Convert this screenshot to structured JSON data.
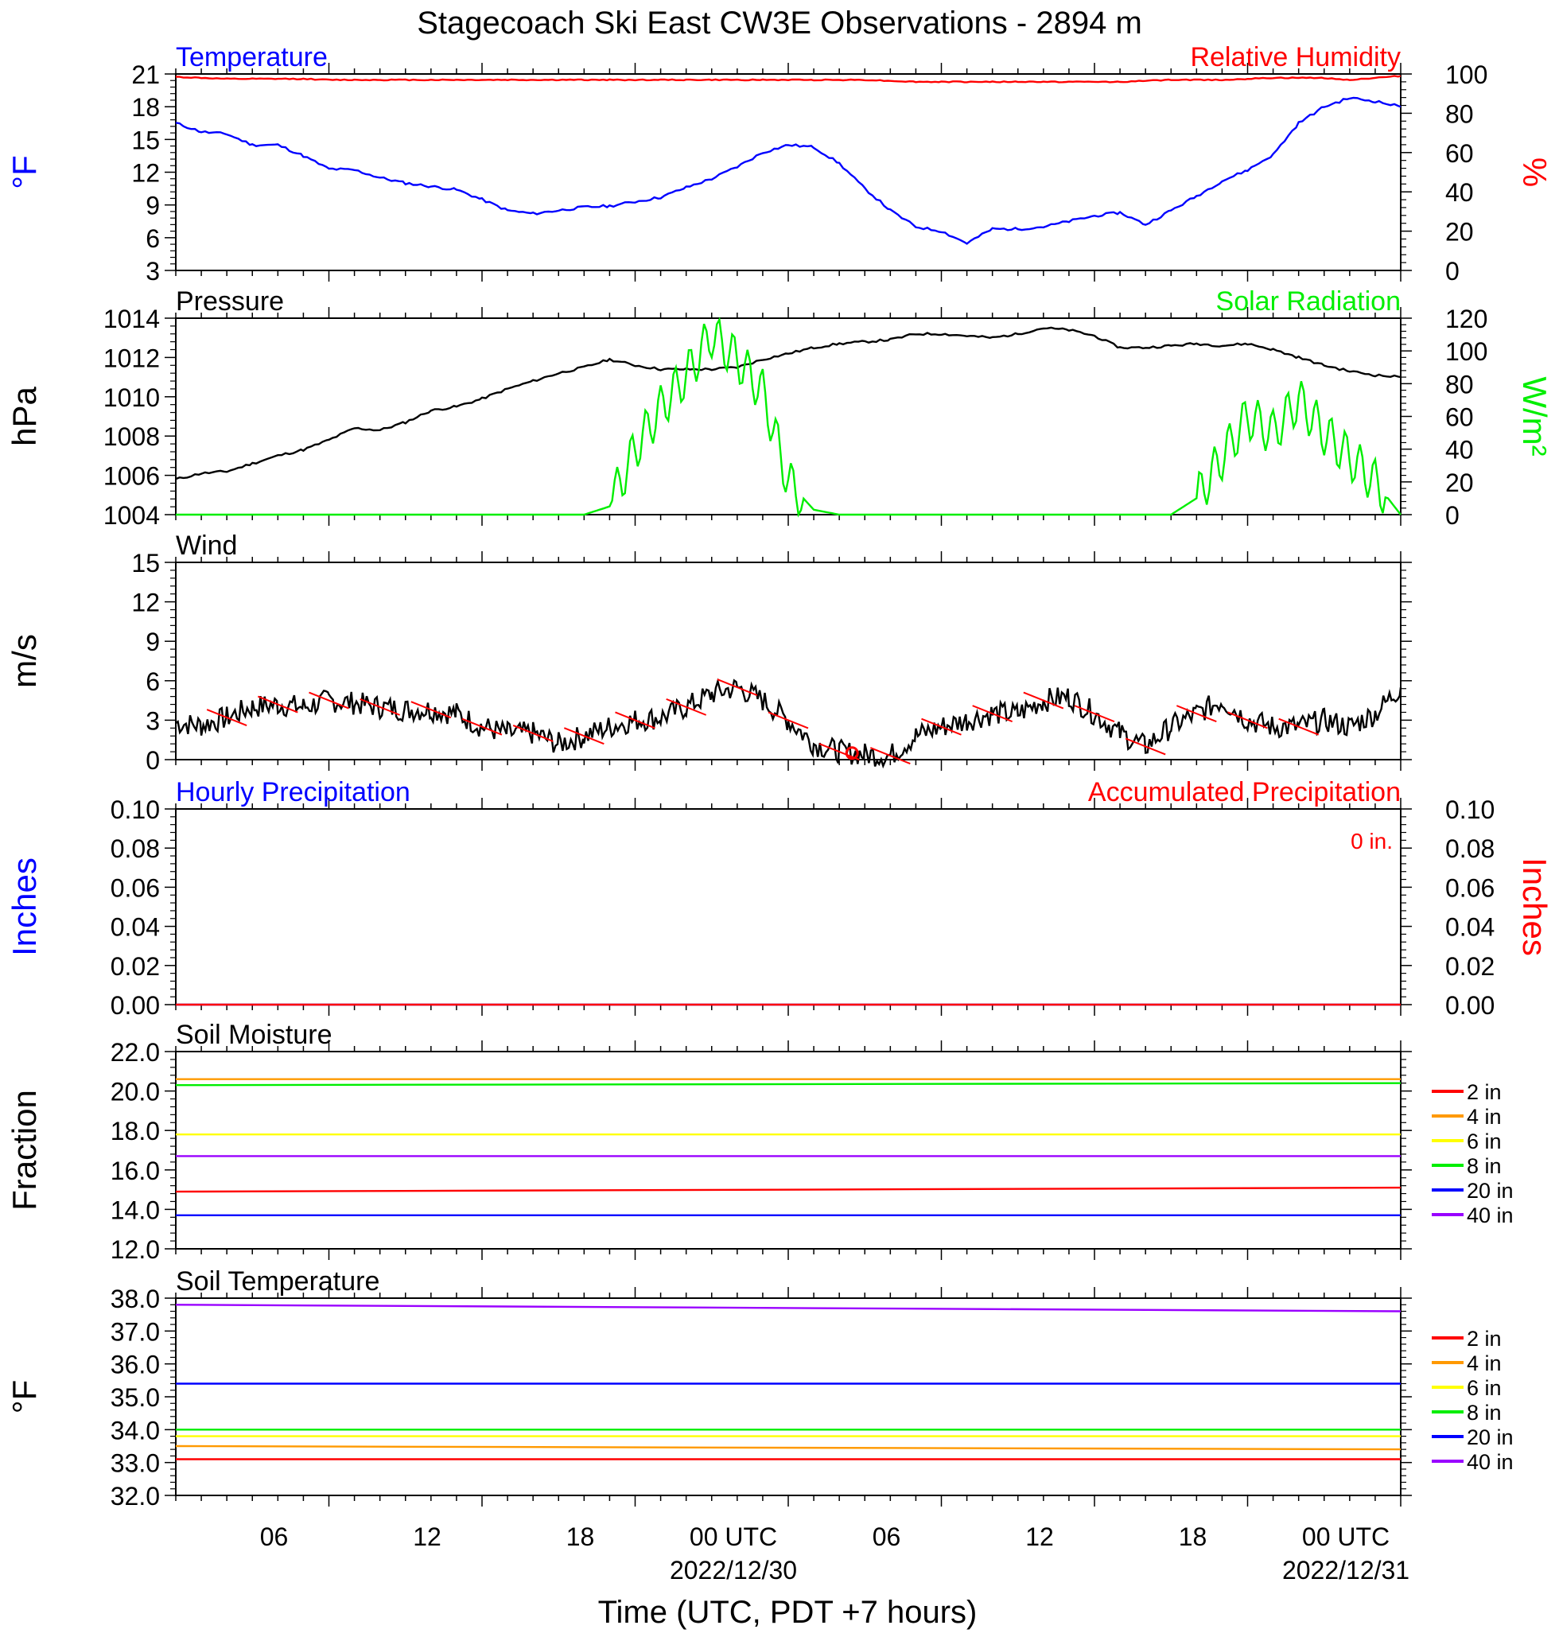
{
  "page": {
    "title": "Stagecoach Ski East CW3E Observations - 2894 m",
    "xlabel": "Time (UTC, PDT +7 hours)",
    "x_ticks": [
      {
        "label": "06"
      },
      {
        "label": "12"
      },
      {
        "label": "18"
      },
      {
        "label": "00 UTC",
        "date": "2022/12/30"
      },
      {
        "label": "06"
      },
      {
        "label": "12"
      },
      {
        "label": "18"
      },
      {
        "label": "00 UTC",
        "date": "2022/12/31"
      }
    ],
    "colors": {
      "blue": "#0000ff",
      "red": "#ff0000",
      "green": "#00ee00",
      "black": "#000000",
      "orange": "#ff9900",
      "yellow": "#ffff00",
      "purple": "#9900ff"
    }
  },
  "chart_data": [
    {
      "id": "temperature",
      "type": "line",
      "title_left": "Temperature",
      "title_right": "Relative Humidity",
      "ylabel_left": "°F",
      "ylabel_right": "%",
      "ylim_left": [
        3,
        21
      ],
      "yticks_left": [
        "21",
        "18",
        "15",
        "12",
        "9",
        "6",
        "3"
      ],
      "ylim_right": [
        0,
        100
      ],
      "yticks_right": [
        "100",
        "80",
        "60",
        "40",
        "20",
        "0"
      ],
      "x_hours": [
        0,
        1,
        2,
        3,
        4,
        5,
        6,
        7,
        8,
        9,
        10,
        11,
        12,
        13,
        14,
        15,
        16,
        17,
        18,
        19,
        20,
        21,
        22,
        23,
        24,
        25,
        26,
        27,
        28,
        29,
        30,
        31,
        32,
        33,
        34,
        35,
        36,
        37,
        38,
        39,
        40,
        41,
        42,
        43,
        44,
        45,
        46,
        47,
        48
      ],
      "series": [
        {
          "name": "Temperature",
          "axis": "left",
          "color": "blue",
          "values": [
            16.5,
            15.7,
            15.5,
            14.5,
            14.5,
            13.5,
            12.3,
            12.2,
            11.5,
            11.0,
            10.7,
            10.4,
            9.5,
            8.5,
            8.2,
            8.5,
            8.8,
            8.9,
            9.3,
            9.7,
            10.6,
            11.4,
            12.5,
            13.8,
            14.5,
            14.3,
            12.8,
            10.5,
            8.5,
            7.0,
            6.6,
            5.5,
            6.8,
            6.8,
            7.0,
            7.5,
            8.0,
            8.3,
            7.2,
            8.5,
            9.8,
            11.2,
            12.2,
            13.6,
            16.5,
            18.0,
            18.8,
            18.5,
            18.0
          ]
        },
        {
          "name": "Relative Humidity",
          "axis": "right",
          "color": "red",
          "values": [
            98.5,
            98,
            97.5,
            97.5,
            97.5,
            97.5,
            97,
            97,
            97,
            97,
            97,
            97,
            97,
            97,
            97,
            97,
            97,
            97,
            97,
            97,
            97,
            97,
            97,
            97,
            97,
            97,
            97,
            97,
            96.5,
            96,
            96,
            96,
            96,
            96,
            96,
            96,
            96,
            96,
            96.5,
            97,
            97,
            97,
            97.5,
            98,
            98,
            98,
            97,
            98,
            99
          ]
        }
      ]
    },
    {
      "id": "pressure",
      "type": "line",
      "title_left": "Pressure",
      "title_right": "Solar Radiation",
      "ylabel_left": "hPa",
      "ylabel_right": "W/m²",
      "ylim_left": [
        1004,
        1014
      ],
      "yticks_left": [
        "1014",
        "1012",
        "1010",
        "1008",
        "1006",
        "1004"
      ],
      "ylim_right": [
        0,
        120
      ],
      "yticks_right": [
        "120",
        "100",
        "80",
        "60",
        "40",
        "20",
        "0"
      ],
      "x_hours": [
        0,
        1,
        2,
        3,
        4,
        5,
        6,
        7,
        8,
        9,
        10,
        11,
        12,
        13,
        14,
        15,
        16,
        17,
        18,
        19,
        20,
        21,
        22,
        23,
        24,
        25,
        26,
        27,
        28,
        29,
        30,
        31,
        32,
        33,
        34,
        35,
        36,
        37,
        38,
        39,
        40,
        41,
        42,
        43,
        44,
        45,
        46,
        47,
        48
      ],
      "series": [
        {
          "name": "Pressure",
          "axis": "left",
          "color": "black",
          "values": [
            1005.8,
            1006.1,
            1006.2,
            1006.6,
            1007.0,
            1007.3,
            1007.8,
            1008.4,
            1008.3,
            1008.7,
            1009.3,
            1009.5,
            1009.9,
            1010.4,
            1010.8,
            1011.2,
            1011.5,
            1011.9,
            1011.6,
            1011.4,
            1011.4,
            1011.4,
            1011.5,
            1011.9,
            1012.2,
            1012.5,
            1012.7,
            1012.8,
            1012.9,
            1013.2,
            1013.2,
            1013.1,
            1013.0,
            1013.2,
            1013.5,
            1013.4,
            1013.1,
            1012.5,
            1012.5,
            1012.6,
            1012.7,
            1012.6,
            1012.7,
            1012.4,
            1012.0,
            1011.6,
            1011.3,
            1011.1,
            1011.0
          ]
        },
        {
          "name": "Solar Radiation",
          "axis": "right",
          "color": "green",
          "values": [
            0,
            0,
            0,
            0,
            0,
            0,
            0,
            0,
            0,
            0,
            0,
            0,
            0,
            0,
            0,
            0,
            0,
            5,
            40,
            65,
            85,
            110,
            95,
            75,
            20,
            3,
            0,
            0,
            0,
            0,
            0,
            0,
            0,
            0,
            0,
            0,
            0,
            0,
            0,
            0,
            10,
            35,
            60,
            50,
            70,
            50,
            35,
            20,
            0
          ]
        }
      ]
    },
    {
      "id": "wind",
      "type": "line",
      "title_left": "Wind",
      "ylabel_left": "m/s",
      "ylim_left": [
        0,
        15
      ],
      "yticks_left": [
        "15",
        "12",
        "9",
        "6",
        "3",
        "0"
      ],
      "x_hours": [
        0,
        1,
        2,
        3,
        4,
        5,
        6,
        7,
        8,
        9,
        10,
        11,
        12,
        13,
        14,
        15,
        16,
        17,
        18,
        19,
        20,
        21,
        22,
        23,
        24,
        25,
        26,
        27,
        28,
        29,
        30,
        31,
        32,
        33,
        34,
        35,
        36,
        37,
        38,
        39,
        40,
        41,
        42,
        43,
        44,
        45,
        46,
        47,
        48
      ],
      "series": [
        {
          "name": "Wind speed",
          "axis": "left",
          "color": "black",
          "values": [
            2.8,
            2.6,
            3.2,
            4.0,
            4.2,
            4.0,
            4.5,
            4.3,
            4.0,
            3.8,
            3.8,
            3.5,
            2.5,
            2.0,
            2.0,
            1.2,
            1.8,
            2.5,
            3.0,
            3.2,
            4.0,
            5.0,
            5.5,
            4.5,
            3.0,
            1.2,
            0.6,
            0.4,
            0.3,
            1.8,
            2.5,
            3.0,
            3.5,
            3.5,
            4.5,
            4.8,
            3.5,
            2.0,
            1.0,
            2.5,
            3.5,
            4.5,
            3.0,
            2.5,
            2.5,
            3.0,
            2.5,
            3.5,
            5.5
          ]
        }
      ]
    },
    {
      "id": "precipitation",
      "type": "line",
      "title_left": "Hourly Precipitation",
      "title_right": "Accumulated Precipitation",
      "annotation": "0 in.",
      "ylabel_left": "Inches",
      "ylabel_right": "Inches",
      "ylim_left": [
        0,
        0.1
      ],
      "yticks_left": [
        "0.10",
        "0.08",
        "0.06",
        "0.04",
        "0.02",
        "0.00"
      ],
      "ylim_right": [
        0,
        0.1
      ],
      "yticks_right": [
        "0.10",
        "0.08",
        "0.06",
        "0.04",
        "0.02",
        "0.00"
      ],
      "x_hours": [
        0,
        48
      ],
      "series": [
        {
          "name": "Hourly Precipitation",
          "axis": "left",
          "color": "blue",
          "values": [
            0,
            0
          ]
        },
        {
          "name": "Accumulated Precipitation",
          "axis": "left",
          "color": "red",
          "values": [
            0,
            0
          ]
        }
      ]
    },
    {
      "id": "soil-moisture",
      "type": "line",
      "title_left": "Soil Moisture",
      "ylabel_left": "Fraction",
      "ylim_left": [
        12,
        22
      ],
      "yticks_left": [
        "22.0",
        "20.0",
        "18.0",
        "16.0",
        "14.0",
        "12.0"
      ],
      "x_hours": [
        0,
        48
      ],
      "series": [
        {
          "name": "2 in",
          "axis": "left",
          "color": "red",
          "values": [
            14.9,
            15.1
          ]
        },
        {
          "name": "4 in",
          "axis": "left",
          "color": "orange",
          "values": [
            20.6,
            20.6
          ]
        },
        {
          "name": "6 in",
          "axis": "left",
          "color": "yellow",
          "values": [
            17.8,
            17.8
          ]
        },
        {
          "name": "8 in",
          "axis": "left",
          "color": "green",
          "values": [
            20.3,
            20.4
          ]
        },
        {
          "name": "20 in",
          "axis": "left",
          "color": "blue",
          "values": [
            13.7,
            13.7
          ]
        },
        {
          "name": "40 in",
          "axis": "left",
          "color": "purple",
          "values": [
            16.7,
            16.7
          ]
        }
      ]
    },
    {
      "id": "soil-temperature",
      "type": "line",
      "title_left": "Soil Temperature",
      "ylabel_left": "°F",
      "ylim_left": [
        32,
        38
      ],
      "yticks_left": [
        "38.0",
        "37.0",
        "36.0",
        "35.0",
        "34.0",
        "33.0",
        "32.0"
      ],
      "x_hours": [
        0,
        48
      ],
      "series": [
        {
          "name": "2 in",
          "axis": "left",
          "color": "red",
          "values": [
            33.1,
            33.1
          ]
        },
        {
          "name": "4 in",
          "axis": "left",
          "color": "orange",
          "values": [
            33.5,
            33.4
          ]
        },
        {
          "name": "6 in",
          "axis": "left",
          "color": "yellow",
          "values": [
            33.8,
            33.8
          ]
        },
        {
          "name": "8 in",
          "axis": "left",
          "color": "green",
          "values": [
            34.0,
            34.0
          ]
        },
        {
          "name": "20 in",
          "axis": "left",
          "color": "blue",
          "values": [
            35.4,
            35.4
          ]
        },
        {
          "name": "40 in",
          "axis": "left",
          "color": "purple",
          "values": [
            37.8,
            37.6
          ]
        }
      ]
    }
  ]
}
